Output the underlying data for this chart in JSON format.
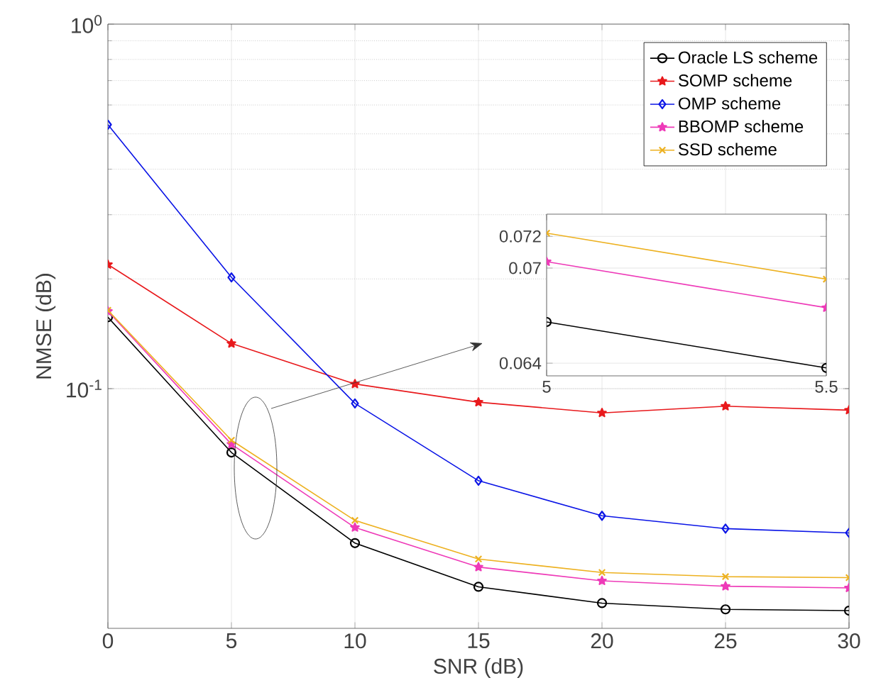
{
  "chart_data": [
    {
      "type": "line",
      "xlabel": "SNR (dB)",
      "ylabel": "NMSE (dB)",
      "x": [
        0,
        5,
        10,
        15,
        20,
        25,
        30
      ],
      "xlim": [
        0,
        30
      ],
      "xticks": [
        0,
        5,
        10,
        15,
        20,
        25,
        30
      ],
      "ylim": [
        0.022,
        1
      ],
      "yticks": [
        {
          "value": 0.1,
          "label": "10$^{-1}$"
        },
        {
          "value": 1,
          "label": "10$^{0}$"
        }
      ],
      "log": "y",
      "grid": true,
      "legend": "top right",
      "series": [
        {
          "name": "Oracle LS scheme",
          "color": "#000000",
          "marker": "circle",
          "values": [
            0.157,
            0.0668,
            0.0377,
            0.0286,
            0.0258,
            0.0248,
            0.0246
          ]
        },
        {
          "name": "SOMP scheme",
          "color": "#e8191c",
          "marker": "star",
          "values": [
            0.219,
            0.133,
            0.103,
            0.0918,
            0.0858,
            0.0895,
            0.0873
          ]
        },
        {
          "name": "OMP scheme",
          "color": "#0a14e6",
          "marker": "diamond",
          "values": [
            0.53,
            0.202,
            0.0911,
            0.0559,
            0.0448,
            0.0413,
            0.0402
          ]
        },
        {
          "name": "BBOMP scheme",
          "color": "#ee3ab8",
          "marker": "star",
          "values": [
            0.163,
            0.0704,
            0.0416,
            0.0324,
            0.0297,
            0.0287,
            0.0284
          ]
        },
        {
          "name": "SSD scheme",
          "color": "#edb120",
          "marker": "cross",
          "values": [
            0.164,
            0.0722,
            0.0435,
            0.0341,
            0.0313,
            0.0305,
            0.0303
          ]
        }
      ]
    },
    {
      "type": "line",
      "x": [
        5,
        5.5
      ],
      "xlim": [
        5,
        5.5
      ],
      "xticks": [
        5,
        5.5
      ],
      "ylim": [
        0.0632,
        0.0734
      ],
      "yticks": [
        0.064,
        0.07,
        0.072
      ],
      "grid": true,
      "series": [
        {
          "color": "#000000",
          "marker": "circle",
          "values": [
            0.0666,
            0.0637
          ]
        },
        {
          "color": "#ee3ab8",
          "marker": "star",
          "values": [
            0.0704,
            0.0675
          ]
        },
        {
          "color": "#edb120",
          "marker": "cross",
          "values": [
            0.0722,
            0.0693
          ]
        }
      ]
    }
  ]
}
